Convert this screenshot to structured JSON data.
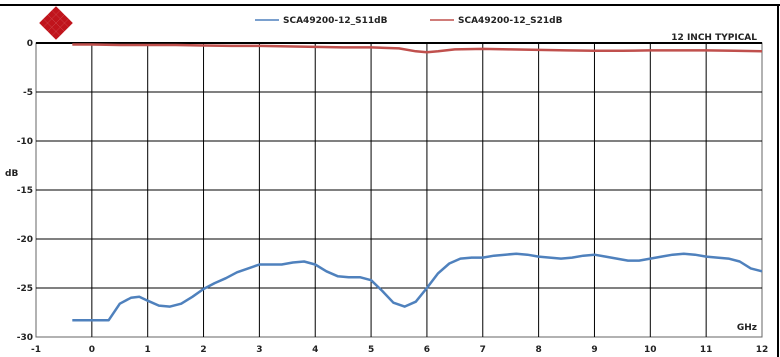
{
  "chart_data": {
    "type": "line",
    "title": "",
    "annotation": "12 INCH TYPICAL",
    "xlabel": "GHz",
    "ylabel": "dB",
    "xlim": [
      -1,
      12
    ],
    "ylim": [
      -30,
      0
    ],
    "x_ticks": [
      -1,
      0,
      1,
      2,
      3,
      4,
      5,
      6,
      7,
      8,
      9,
      10,
      11,
      12
    ],
    "y_ticks": [
      0,
      -5,
      -10,
      -15,
      -20,
      -25,
      -30
    ],
    "y_tick_labels": [
      "0",
      "-5",
      "-10",
      "-15",
      "-20",
      "-25",
      "-30"
    ],
    "grid": true,
    "legend_position": "top",
    "series": [
      {
        "name": "SCA49200-12_S11dB",
        "color": "#4f81bd",
        "x": [
          -0.35,
          0.0,
          0.3,
          0.5,
          0.7,
          0.85,
          1.0,
          1.2,
          1.4,
          1.6,
          1.8,
          2.0,
          2.2,
          2.4,
          2.6,
          2.8,
          3.0,
          3.2,
          3.4,
          3.6,
          3.8,
          4.0,
          4.2,
          4.4,
          4.6,
          4.8,
          5.0,
          5.2,
          5.4,
          5.6,
          5.8,
          6.0,
          6.2,
          6.4,
          6.6,
          6.8,
          7.0,
          7.2,
          7.4,
          7.6,
          7.8,
          8.0,
          8.2,
          8.4,
          8.6,
          8.8,
          9.0,
          9.2,
          9.4,
          9.6,
          9.8,
          10.0,
          10.2,
          10.4,
          10.6,
          10.8,
          11.0,
          11.2,
          11.4,
          11.6,
          11.8,
          12.0
        ],
        "values": [
          -28.3,
          -28.3,
          -28.3,
          -26.6,
          -26.0,
          -25.9,
          -26.3,
          -26.8,
          -26.9,
          -26.6,
          -25.9,
          -25.1,
          -24.5,
          -24.0,
          -23.4,
          -23.0,
          -22.6,
          -22.6,
          -22.6,
          -22.4,
          -22.3,
          -22.6,
          -23.3,
          -23.8,
          -23.9,
          -23.9,
          -24.2,
          -25.3,
          -26.5,
          -26.9,
          -26.4,
          -25.0,
          -23.5,
          -22.5,
          -22.0,
          -21.9,
          -21.9,
          -21.7,
          -21.6,
          -21.5,
          -21.6,
          -21.8,
          -21.9,
          -22.0,
          -21.9,
          -21.7,
          -21.6,
          -21.8,
          -22.0,
          -22.2,
          -22.2,
          -22.0,
          -21.8,
          -21.6,
          -21.5,
          -21.6,
          -21.8,
          -21.9,
          -22.0,
          -22.3,
          -23.0,
          -23.3
        ]
      },
      {
        "name": "SCA49200-12_S21dB",
        "color": "#c0504d",
        "x": [
          -0.35,
          0.0,
          0.5,
          1.0,
          1.5,
          2.0,
          2.5,
          3.0,
          3.5,
          4.0,
          4.5,
          5.0,
          5.5,
          5.8,
          6.0,
          6.2,
          6.5,
          7.0,
          7.5,
          8.0,
          8.5,
          9.0,
          9.5,
          10.0,
          10.5,
          11.0,
          11.5,
          12.0
        ],
        "values": [
          -0.15,
          -0.15,
          -0.2,
          -0.2,
          -0.2,
          -0.25,
          -0.3,
          -0.3,
          -0.35,
          -0.4,
          -0.45,
          -0.45,
          -0.55,
          -0.85,
          -0.95,
          -0.85,
          -0.65,
          -0.6,
          -0.65,
          -0.7,
          -0.75,
          -0.8,
          -0.8,
          -0.75,
          -0.75,
          -0.75,
          -0.8,
          -0.85
        ]
      }
    ]
  }
}
